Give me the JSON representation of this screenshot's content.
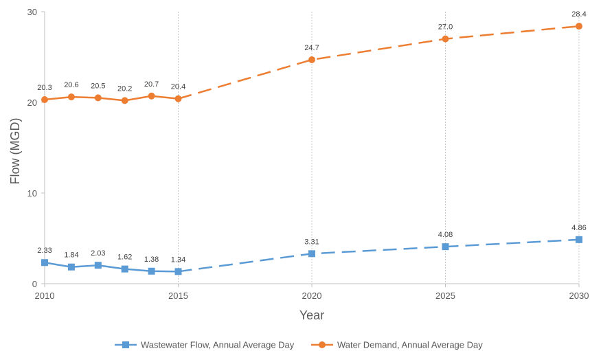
{
  "chart_data": {
    "type": "line",
    "title": "",
    "xlabel": "Year",
    "ylabel": "Flow (MGD)",
    "xlim": [
      2010,
      2030
    ],
    "ylim": [
      0,
      30
    ],
    "x_ticks": [
      "2010",
      "2015",
      "2020",
      "2025",
      "2030"
    ],
    "y_ticks": [
      "0",
      "10",
      "20",
      "30"
    ],
    "grid": "vertical dotted at 2015, 2020, 2025, 2030",
    "legend_position": "bottom",
    "series": [
      {
        "name": "Wastewater Flow, Annual Average Day",
        "color": "#5b9bd5",
        "marker": "square",
        "x": [
          2010,
          2011,
          2012,
          2013,
          2014,
          2015,
          2020,
          2025,
          2030
        ],
        "values": [
          2.33,
          1.84,
          2.03,
          1.62,
          1.38,
          1.34,
          3.31,
          4.08,
          4.86
        ],
        "labels": [
          "2.33",
          "1.84",
          "2.03",
          "1.62",
          "1.38",
          "1.34",
          "3.31",
          "4.08",
          "4.86"
        ],
        "historical_through": 2015
      },
      {
        "name": "Water Demand, Annual Average Day",
        "color": "#ed7d31",
        "marker": "circle",
        "x": [
          2010,
          2011,
          2012,
          2013,
          2014,
          2015,
          2020,
          2025,
          2030
        ],
        "values": [
          20.3,
          20.6,
          20.5,
          20.2,
          20.7,
          20.4,
          24.7,
          27.0,
          28.4
        ],
        "labels": [
          "20.3",
          "20.6",
          "20.5",
          "20.2",
          "20.7",
          "20.4",
          "24.7",
          "27.0",
          "28.4"
        ],
        "historical_through": 2015
      }
    ]
  }
}
